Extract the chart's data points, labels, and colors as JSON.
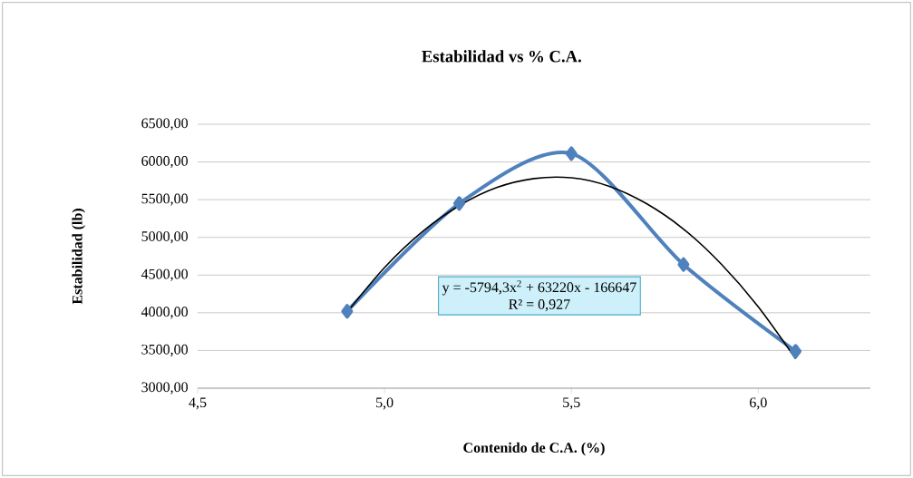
{
  "chart_data": {
    "type": "line",
    "title": "Estabilidad vs % C.A.",
    "xlabel": "Contenido de C.A. (%)",
    "ylabel": "Estabilidad (lb)",
    "x": [
      4.9,
      5.2,
      5.5,
      5.8,
      6.1
    ],
    "series": [
      {
        "color": "#4f81bd",
        "marker": "diamond",
        "values": [
          4020,
          5450,
          6110,
          4640,
          3490
        ]
      },
      {
        "type": "line",
        "color": "#000000",
        "marker": "none",
        "x": [
          4.9,
          5.0,
          5.1,
          5.2,
          5.3,
          5.4,
          5.5,
          5.6,
          5.7,
          5.8,
          5.9,
          6.0,
          6.1
        ],
        "values": [
          4010,
          4600,
          5070,
          5420,
          5660,
          5780,
          5790,
          5680,
          5450,
          5110,
          4650,
          4080,
          3390
        ]
      }
    ],
    "xlim": [
      4.5,
      6.3
    ],
    "ylim": [
      3000,
      6500
    ],
    "xticks": [
      {
        "value": 4.5,
        "label": "4,5"
      },
      {
        "value": 5.0,
        "label": "5,0"
      },
      {
        "value": 5.5,
        "label": "5,5"
      },
      {
        "value": 6.0,
        "label": "6,0"
      }
    ],
    "yticks": [
      {
        "value": 3000,
        "label": "3000,00"
      },
      {
        "value": 3500,
        "label": "3500,00"
      },
      {
        "value": 4000,
        "label": "4000,00"
      },
      {
        "value": 4500,
        "label": "4500,00"
      },
      {
        "value": 5000,
        "label": "5000,00"
      },
      {
        "value": 5500,
        "label": "5500,00"
      },
      {
        "value": 6000,
        "label": "6000,00"
      },
      {
        "value": 6500,
        "label": "6500,00"
      }
    ],
    "grid": "y",
    "annotations": [
      "y = -5794,3x$^{2}$ + 63220x - 166647",
      "R² = 0,927"
    ]
  }
}
